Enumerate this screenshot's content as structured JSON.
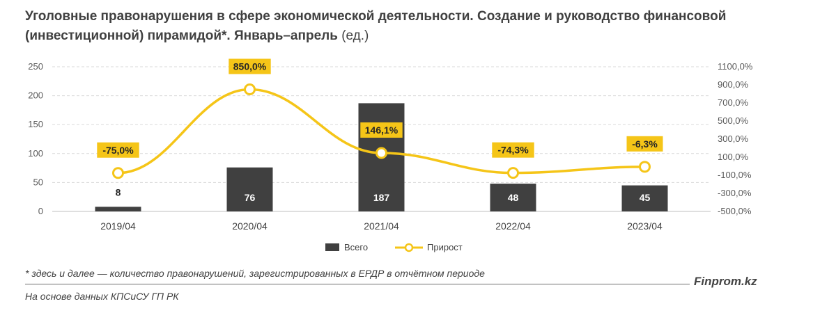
{
  "title": {
    "main": "Уголовные правонарушения в сфере экономической деятельности. Создание и руководство финансовой (инвестиционной) пирамидой*. Январь–апрель",
    "unit": "(ед.)"
  },
  "footnote": "* здесь и далее — количество правонарушений, зарегистрированных в ЕРДР в отчётном периоде",
  "source": "На основе данных КПСиСУ ГП РК",
  "brand": "Finprom.kz",
  "colors": {
    "bar": "#404040",
    "line": "#F5C518",
    "grid": "#d9d9d9",
    "label_bg": "#F5C518"
  },
  "chart_data": {
    "type": "bar",
    "categories": [
      "2019/04",
      "2020/04",
      "2021/04",
      "2022/04",
      "2023/04"
    ],
    "series": [
      {
        "name": "Всего",
        "type": "bar",
        "axis": "left",
        "values": [
          8,
          76,
          187,
          48,
          45
        ],
        "labels": [
          "8",
          "76",
          "187",
          "48",
          "45"
        ]
      },
      {
        "name": "Прирост",
        "type": "line",
        "axis": "right",
        "values": [
          -75.0,
          850.0,
          146.1,
          -74.3,
          -6.3
        ],
        "labels": [
          "-75,0%",
          "850,0%",
          "146,1%",
          "-74,3%",
          "-6,3%"
        ]
      }
    ],
    "y_left": {
      "lim": [
        0,
        250
      ],
      "ticks": [
        0,
        50,
        100,
        150,
        200,
        250
      ],
      "tick_labels": [
        "0",
        "50",
        "100",
        "150",
        "200",
        "250"
      ]
    },
    "y_right": {
      "lim": [
        -500,
        1100
      ],
      "ticks": [
        -500,
        -300,
        -100,
        100,
        300,
        500,
        700,
        900,
        1100
      ],
      "tick_labels": [
        "-500,0%",
        "-300,0%",
        "-100,0%",
        "100,0%",
        "300,0%",
        "500,0%",
        "700,0%",
        "900,0%",
        "1100,0%"
      ]
    },
    "grid": true,
    "legend": "bottom"
  }
}
